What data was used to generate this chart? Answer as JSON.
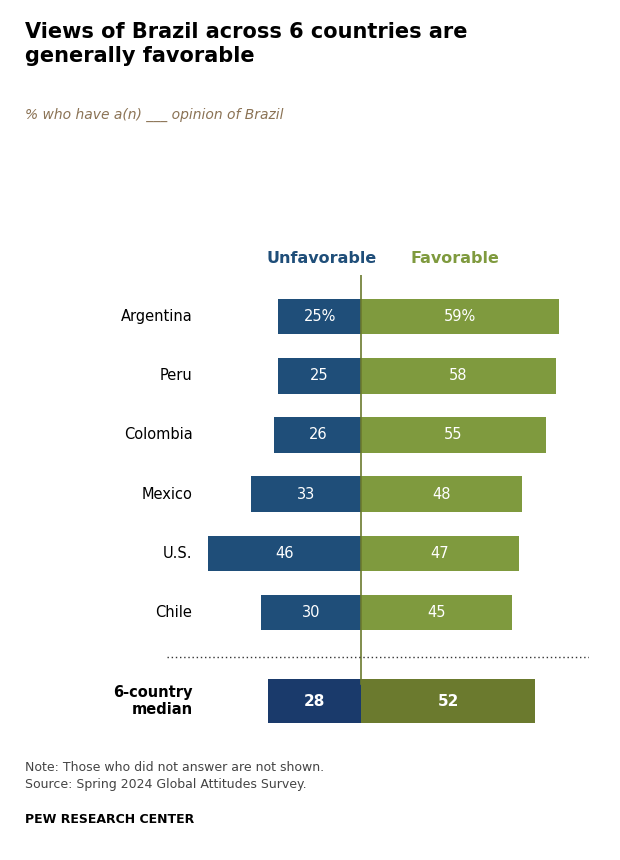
{
  "title": "Views of Brazil across 6 countries are\ngenerally favorable",
  "subtitle": "% who have a(n) ___ opinion of Brazil",
  "countries": [
    "Argentina",
    "Peru",
    "Colombia",
    "Mexico",
    "U.S.",
    "Chile"
  ],
  "unfavorable": [
    25,
    25,
    26,
    33,
    46,
    30
  ],
  "favorable": [
    59,
    58,
    55,
    48,
    47,
    45
  ],
  "median_unfavorable": 28,
  "median_favorable": 52,
  "unfav_color": "#1f4e79",
  "fav_color": "#7f9a3e",
  "median_unfav_color": "#1a3a6b",
  "median_fav_color": "#6b7a2e",
  "bar_height": 0.6,
  "median_bar_height": 0.75,
  "note": "Note: Those who did not answer are not shown.\nSource: Spring 2024 Global Attitudes Survey.",
  "source_label": "PEW RESEARCH CENTER",
  "unfav_header": "Unfavorable",
  "fav_header": "Favorable",
  "background_color": "#ffffff",
  "subtitle_color": "#8b7355",
  "unfav_header_color": "#1f4e79",
  "fav_header_color": "#7f9a3e"
}
